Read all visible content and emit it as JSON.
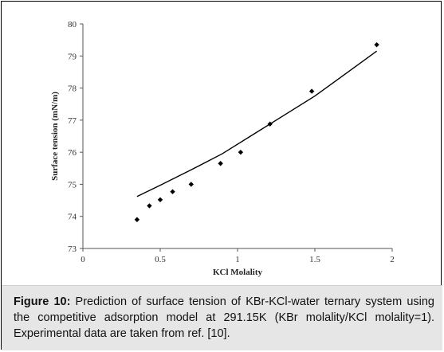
{
  "chart_data": {
    "type": "scatter",
    "xlabel": "KCl Molality",
    "ylabel": "Surface tension (mN/m)",
    "xlim": [
      0,
      2
    ],
    "ylim": [
      73,
      80
    ],
    "xticks": [
      "0",
      "0.5",
      "1",
      "1.5",
      "2"
    ],
    "yticks": [
      "73",
      "74",
      "75",
      "76",
      "77",
      "78",
      "79",
      "80"
    ],
    "grid": false,
    "series": [
      {
        "kind": "points",
        "marker": "diamond",
        "x": [
          0.35,
          0.43,
          0.5,
          0.58,
          0.7,
          0.89,
          1.02,
          1.21,
          1.48,
          1.9
        ],
        "y": [
          73.9,
          74.33,
          74.52,
          74.77,
          75.0,
          75.65,
          76.0,
          76.88,
          77.9,
          79.35
        ]
      },
      {
        "kind": "line",
        "x": [
          0.35,
          0.5,
          0.7,
          0.9,
          1.1,
          1.3,
          1.5,
          1.7,
          1.9
        ],
        "y": [
          74.62,
          74.97,
          75.45,
          75.95,
          76.55,
          77.15,
          77.75,
          78.45,
          79.15
        ]
      }
    ]
  },
  "caption": {
    "label": "Figure 10:",
    "text": " Prediction of surface tension of KBr-KCl-water ternary system using the competitive adsorption model at 291.15K (KBr molality/KCl molality=1). Experimental data are taken from ref. [10]."
  }
}
